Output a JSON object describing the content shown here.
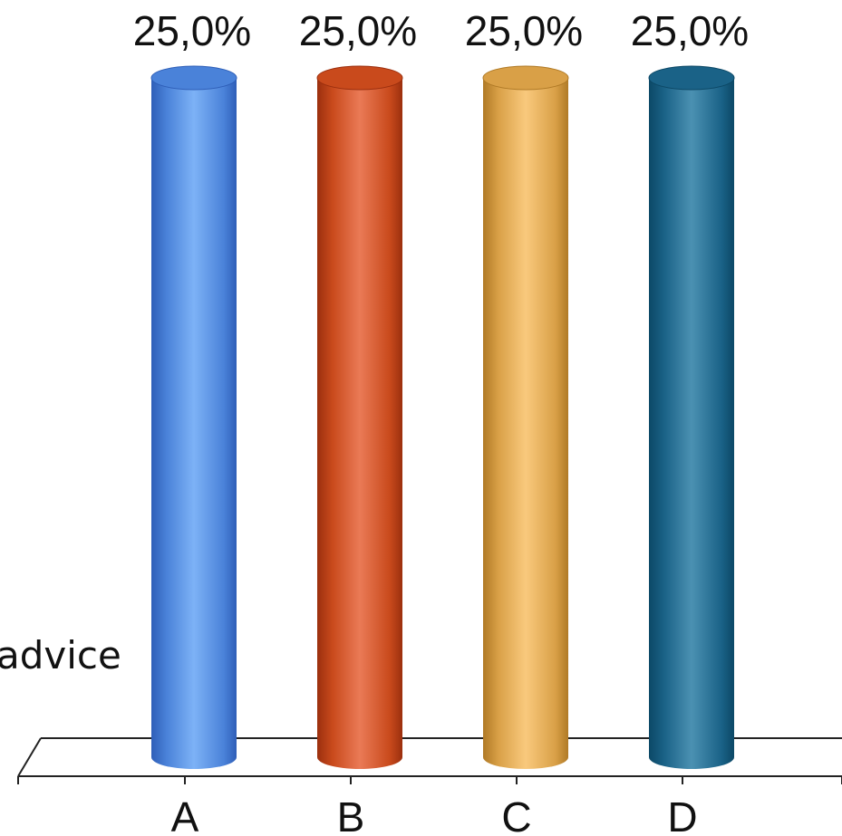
{
  "chart_data": {
    "type": "bar",
    "style": "3d-cylinder",
    "categories": [
      "A",
      "B",
      "C",
      "D"
    ],
    "values": [
      25.0,
      25.0,
      25.0,
      25.0
    ],
    "data_labels": [
      "25,0%",
      "25,0%",
      "25,0%",
      "25,0%"
    ],
    "ylim": [
      0,
      25
    ],
    "grid": false,
    "legend": "none",
    "colors": {
      "A": {
        "dark": "#2f5fb8",
        "mid": "#4a82d9",
        "light": "#7db2f6"
      },
      "B": {
        "dark": "#9b2f0e",
        "mid": "#c94a1c",
        "light": "#ea7a56"
      },
      "C": {
        "dark": "#b07a26",
        "mid": "#d9a047",
        "light": "#f9c97d"
      },
      "D": {
        "dark": "#0c4866",
        "mid": "#1a6287",
        "light": "#4b91b2"
      }
    }
  },
  "side_text": "advice"
}
